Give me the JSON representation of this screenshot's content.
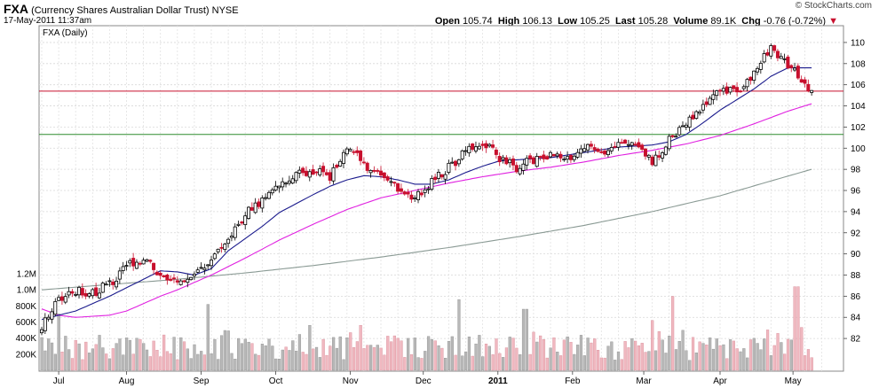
{
  "header": {
    "symbol": "FXA",
    "name": "(Currency Shares Australian Dollar Trust)",
    "exchange": "NYSE",
    "datetime": "17-May-2011 11:37am",
    "panel_label": "FXA (Daily)",
    "watermark": "© StockCharts.com",
    "ohlc": {
      "open_label": "Open",
      "open": "105.74",
      "high_label": "High",
      "high": "106.13",
      "low_label": "Low",
      "low": "105.25",
      "last_label": "Last",
      "last": "105.28",
      "volume_label": "Volume",
      "volume": "89.1K",
      "chg_label": "Chg",
      "chg": "-0.76 (-0.72%)"
    },
    "down_arrow_icon": "triangle-down-icon",
    "down_color": "#c8102e"
  },
  "chart_data": {
    "type": "candlestick",
    "title": "FXA (Daily)",
    "x_ticks": [
      {
        "label": "Jul",
        "week": 1
      },
      {
        "label": "Aug",
        "week": 5
      },
      {
        "label": "Sep",
        "week": 9.4
      },
      {
        "label": "Oct",
        "week": 13.8
      },
      {
        "label": "Nov",
        "week": 18.2
      },
      {
        "label": "Dec",
        "week": 22.5
      },
      {
        "label": "2011",
        "week": 26.9,
        "bold": true
      },
      {
        "label": "Feb",
        "week": 31.3
      },
      {
        "label": "Mar",
        "week": 35.5
      },
      {
        "label": "Apr",
        "week": 40
      },
      {
        "label": "May",
        "week": 44.3
      }
    ],
    "price_axis": {
      "min": 80.5,
      "max": 111,
      "ticks": [
        82,
        84,
        86,
        88,
        90,
        92,
        94,
        96,
        98,
        100,
        102,
        104,
        106,
        108,
        110
      ]
    },
    "volume_axis": {
      "max": 1300000,
      "tick_labels": [
        "200K",
        "400K",
        "600K",
        "800K",
        "1.0M",
        "1.2M"
      ],
      "tick_values": [
        200000,
        400000,
        600000,
        800000,
        1000000,
        1200000
      ]
    },
    "horizontal_lines": [
      {
        "value": 105.4,
        "color": "#c8102e"
      },
      {
        "value": 101.3,
        "color": "#2e8b2e"
      }
    ],
    "close_path": [
      [
        0,
        83.2
      ],
      [
        1,
        85.8
      ],
      [
        2,
        86.6
      ],
      [
        3,
        86.3
      ],
      [
        4,
        87.2
      ],
      [
        5,
        88.8
      ],
      [
        6,
        89.6
      ],
      [
        7,
        88.1
      ],
      [
        8,
        87.4
      ],
      [
        9,
        87.8
      ],
      [
        10,
        89.2
      ],
      [
        11,
        91.2
      ],
      [
        12,
        93.8
      ],
      [
        13,
        95.2
      ],
      [
        14,
        96.2
      ],
      [
        15,
        97.4
      ],
      [
        16,
        97.8
      ],
      [
        17,
        97.3
      ],
      [
        18,
        100.0
      ],
      [
        19,
        98.6
      ],
      [
        20,
        97.2
      ],
      [
        21,
        96.3
      ],
      [
        22,
        95.2
      ],
      [
        23,
        96.8
      ],
      [
        24,
        98.2
      ],
      [
        25,
        99.6
      ],
      [
        26,
        100.6
      ],
      [
        27,
        99.0
      ],
      [
        28,
        98.2
      ],
      [
        29,
        98.9
      ],
      [
        30,
        99.4
      ],
      [
        31,
        99.0
      ],
      [
        32,
        100.1
      ],
      [
        33,
        99.6
      ],
      [
        34,
        100.6
      ],
      [
        35,
        100.2
      ],
      [
        36,
        98.6
      ],
      [
        37,
        100.9
      ],
      [
        38,
        102.6
      ],
      [
        39,
        104.0
      ],
      [
        40,
        105.6
      ],
      [
        41,
        105.2
      ],
      [
        42,
        107.2
      ],
      [
        43,
        109.6
      ],
      [
        44,
        107.8
      ],
      [
        45,
        106.2
      ],
      [
        45.4,
        105.3
      ]
    ],
    "close_points_per_week": 5,
    "sma_20": [
      [
        0,
        83.8
      ],
      [
        2,
        84.6
      ],
      [
        4,
        86.0
      ],
      [
        6,
        87.6
      ],
      [
        7,
        88.4
      ],
      [
        8,
        88.3
      ],
      [
        9,
        88.0
      ],
      [
        10,
        88.6
      ],
      [
        11,
        90.3
      ],
      [
        13,
        92.6
      ],
      [
        14,
        93.9
      ],
      [
        16,
        95.6
      ],
      [
        17,
        96.4
      ],
      [
        18,
        97.0
      ],
      [
        19,
        97.4
      ],
      [
        20,
        97.3
      ],
      [
        21,
        97.0
      ],
      [
        22,
        96.6
      ],
      [
        23,
        96.6
      ],
      [
        24,
        97.0
      ],
      [
        25,
        97.7
      ],
      [
        26,
        98.3
      ],
      [
        27,
        98.8
      ],
      [
        28,
        98.9
      ],
      [
        29,
        99.0
      ],
      [
        30,
        99.1
      ],
      [
        32,
        99.6
      ],
      [
        34,
        100.1
      ],
      [
        35,
        100.2
      ],
      [
        36,
        100.3
      ],
      [
        37,
        100.6
      ],
      [
        38,
        101.3
      ],
      [
        39,
        102.4
      ],
      [
        40,
        103.6
      ],
      [
        41,
        104.6
      ],
      [
        42,
        105.6
      ],
      [
        43,
        106.8
      ],
      [
        44,
        107.6
      ],
      [
        45.4,
        107.6
      ]
    ],
    "sma_50": [
      [
        0,
        84.8
      ],
      [
        1,
        84.2
      ],
      [
        2,
        84.0
      ],
      [
        4,
        84.2
      ],
      [
        5,
        84.6
      ],
      [
        6,
        85.3
      ],
      [
        7,
        86.0
      ],
      [
        8,
        86.6
      ],
      [
        9,
        87.3
      ],
      [
        10,
        88.0
      ],
      [
        12,
        89.6
      ],
      [
        14,
        91.3
      ],
      [
        16,
        92.8
      ],
      [
        18,
        94.2
      ],
      [
        20,
        95.3
      ],
      [
        22,
        96.0
      ],
      [
        24,
        96.7
      ],
      [
        26,
        97.3
      ],
      [
        28,
        97.8
      ],
      [
        30,
        98.2
      ],
      [
        32,
        98.7
      ],
      [
        34,
        99.3
      ],
      [
        36,
        99.8
      ],
      [
        38,
        100.4
      ],
      [
        40,
        101.2
      ],
      [
        42,
        102.3
      ],
      [
        44,
        103.5
      ],
      [
        45.4,
        104.2
      ]
    ],
    "sma_200": [
      [
        0,
        86.6
      ],
      [
        4,
        87.1
      ],
      [
        8,
        87.6
      ],
      [
        12,
        88.2
      ],
      [
        16,
        88.9
      ],
      [
        20,
        89.7
      ],
      [
        24,
        90.6
      ],
      [
        28,
        91.6
      ],
      [
        32,
        92.7
      ],
      [
        36,
        94.0
      ],
      [
        40,
        95.5
      ],
      [
        43,
        96.9
      ],
      [
        45.4,
        98.0
      ]
    ],
    "volume_seed": 7,
    "volume_spikes": [
      {
        "week": 37.2,
        "value": 920000
      },
      {
        "week": 44.5,
        "value": 1040000
      },
      {
        "week": 28.5,
        "value": 760000
      },
      {
        "week": 24.6,
        "value": 880000
      },
      {
        "week": 36.0,
        "value": 620000
      },
      {
        "week": 9.8,
        "value": 820000
      },
      {
        "week": 1.0,
        "value": 700000
      },
      {
        "week": 46.0,
        "value": 610000
      }
    ],
    "series": [
      {
        "name": "Price",
        "up_color": "#000000",
        "down_color": "#c8102e"
      },
      {
        "name": "SMA 20",
        "color": "#1a1a8c"
      },
      {
        "name": "SMA 50",
        "color": "#e020e0"
      },
      {
        "name": "SMA 200",
        "color": "#8a9a94"
      },
      {
        "name": "Volume",
        "up_color": "#b8b8b8",
        "down_color": "#f0b8c0"
      }
    ]
  }
}
